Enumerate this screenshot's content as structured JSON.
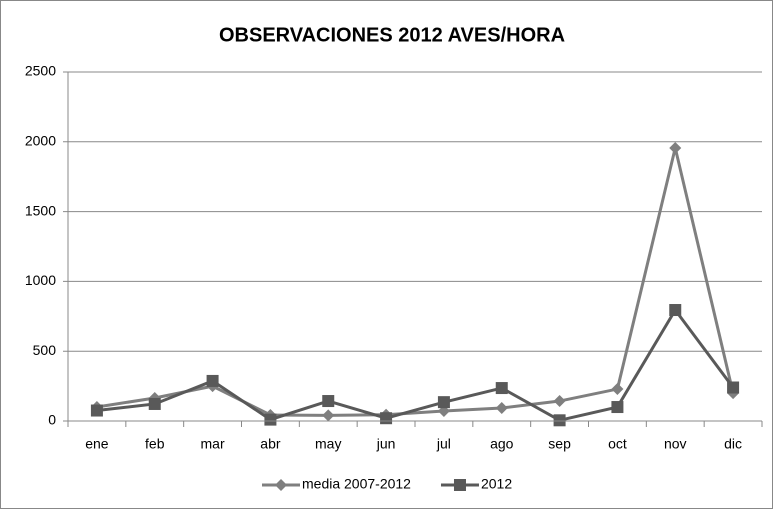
{
  "chart_data": {
    "type": "line",
    "title": "OBSERVACIONES 2012 AVES/HORA",
    "categories": [
      "ene",
      "feb",
      "mar",
      "abr",
      "may",
      "jun",
      "jul",
      "ago",
      "sep",
      "oct",
      "nov",
      "dic"
    ],
    "series": [
      {
        "name": "media 2007-2012",
        "color": "#7f7f7f",
        "marker": "diamond",
        "values": [
          100,
          165,
          250,
          43,
          40,
          45,
          72,
          93,
          143,
          229,
          1956,
          200
        ]
      },
      {
        "name": "2012",
        "color": "#595959",
        "marker": "square",
        "values": [
          75,
          122,
          287,
          10,
          143,
          20,
          135,
          236,
          5,
          100,
          795,
          240
        ]
      }
    ],
    "ylim": [
      0,
      2500
    ],
    "yticks": [
      0,
      500,
      1000,
      1500,
      2000,
      2500
    ],
    "grid": true,
    "legend": "bottom"
  }
}
